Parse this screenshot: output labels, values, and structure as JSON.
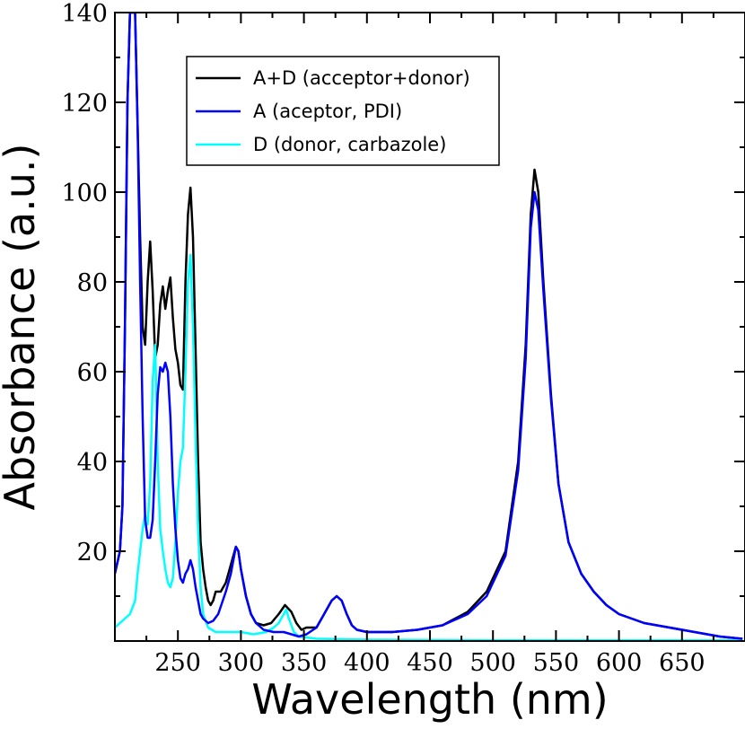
{
  "chart_data": {
    "type": "line",
    "title": "",
    "xlabel": "Wavelength (nm)",
    "ylabel": "Absorbance (a.u.)",
    "xlim": [
      200,
      700
    ],
    "ylim": [
      0,
      140
    ],
    "xticks": [
      250,
      300,
      350,
      400,
      450,
      500,
      550,
      600,
      650
    ],
    "yticks": [
      20,
      40,
      60,
      80,
      100,
      120,
      140
    ],
    "grid": false,
    "legend_position": "top-left",
    "series": [
      {
        "name": "A+D (acceptor+donor)",
        "color": "#000000",
        "points": [
          [
            200,
            15
          ],
          [
            204,
            20
          ],
          [
            206,
            30
          ],
          [
            208,
            70
          ],
          [
            210,
            120
          ],
          [
            212,
            140
          ],
          [
            216,
            140
          ],
          [
            218,
            115
          ],
          [
            220,
            90
          ],
          [
            222,
            70
          ],
          [
            224,
            66
          ],
          [
            226,
            80
          ],
          [
            228,
            89
          ],
          [
            230,
            78
          ],
          [
            232,
            63
          ],
          [
            234,
            66
          ],
          [
            236,
            75
          ],
          [
            238,
            79
          ],
          [
            240,
            74
          ],
          [
            242,
            78
          ],
          [
            244,
            81
          ],
          [
            246,
            72
          ],
          [
            248,
            65
          ],
          [
            250,
            62
          ],
          [
            252,
            57
          ],
          [
            254,
            56
          ],
          [
            256,
            80
          ],
          [
            258,
            95
          ],
          [
            260,
            101
          ],
          [
            262,
            90
          ],
          [
            264,
            65
          ],
          [
            266,
            40
          ],
          [
            268,
            22
          ],
          [
            270,
            16
          ],
          [
            272,
            12
          ],
          [
            274,
            9
          ],
          [
            276,
            8
          ],
          [
            278,
            9
          ],
          [
            280,
            11
          ],
          [
            284,
            11
          ],
          [
            288,
            13
          ],
          [
            292,
            17
          ],
          [
            296,
            21
          ],
          [
            298,
            20
          ],
          [
            300,
            16
          ],
          [
            304,
            10
          ],
          [
            308,
            6
          ],
          [
            312,
            4
          ],
          [
            318,
            3.5
          ],
          [
            324,
            4
          ],
          [
            330,
            6
          ],
          [
            335,
            8
          ],
          [
            340,
            6.5
          ],
          [
            344,
            4
          ],
          [
            348,
            2.5
          ],
          [
            352,
            3
          ],
          [
            360,
            3
          ],
          [
            366,
            6
          ],
          [
            372,
            9
          ],
          [
            376,
            10
          ],
          [
            380,
            9
          ],
          [
            384,
            6
          ],
          [
            388,
            3.5
          ],
          [
            392,
            2.5
          ],
          [
            400,
            2
          ],
          [
            420,
            2
          ],
          [
            440,
            2.5
          ],
          [
            460,
            3.5
          ],
          [
            480,
            6.5
          ],
          [
            495,
            11
          ],
          [
            510,
            20
          ],
          [
            520,
            40
          ],
          [
            526,
            66
          ],
          [
            530,
            95
          ],
          [
            533,
            105
          ],
          [
            536,
            100
          ],
          [
            540,
            80
          ],
          [
            546,
            55
          ],
          [
            552,
            35
          ],
          [
            560,
            22
          ],
          [
            570,
            15
          ],
          [
            580,
            11
          ],
          [
            590,
            8
          ],
          [
            600,
            6
          ],
          [
            620,
            4
          ],
          [
            640,
            3
          ],
          [
            660,
            2
          ],
          [
            680,
            1
          ],
          [
            698,
            0.5
          ]
        ]
      },
      {
        "name": "A (aceptor, PDI)",
        "color": "#0000ff",
        "points": [
          [
            200,
            15
          ],
          [
            204,
            20
          ],
          [
            206,
            30
          ],
          [
            208,
            70
          ],
          [
            210,
            120
          ],
          [
            212,
            140
          ],
          [
            216,
            140
          ],
          [
            218,
            115
          ],
          [
            220,
            80
          ],
          [
            222,
            50
          ],
          [
            224,
            27
          ],
          [
            226,
            23
          ],
          [
            228,
            23
          ],
          [
            230,
            27
          ],
          [
            232,
            40
          ],
          [
            234,
            55
          ],
          [
            236,
            61
          ],
          [
            238,
            60
          ],
          [
            240,
            62
          ],
          [
            242,
            60
          ],
          [
            244,
            50
          ],
          [
            246,
            35
          ],
          [
            248,
            25
          ],
          [
            250,
            18
          ],
          [
            252,
            14
          ],
          [
            254,
            13
          ],
          [
            256,
            15
          ],
          [
            258,
            16
          ],
          [
            260,
            18
          ],
          [
            262,
            16
          ],
          [
            264,
            12
          ],
          [
            266,
            9
          ],
          [
            268,
            6
          ],
          [
            270,
            5
          ],
          [
            274,
            4
          ],
          [
            278,
            4.5
          ],
          [
            282,
            6
          ],
          [
            288,
            11
          ],
          [
            292,
            15
          ],
          [
            296,
            21
          ],
          [
            298,
            20
          ],
          [
            300,
            16
          ],
          [
            304,
            10
          ],
          [
            308,
            6
          ],
          [
            312,
            4
          ],
          [
            318,
            2.5
          ],
          [
            326,
            2
          ],
          [
            334,
            2
          ],
          [
            340,
            1.5
          ],
          [
            346,
            1
          ],
          [
            352,
            1.5
          ],
          [
            360,
            3
          ],
          [
            366,
            6
          ],
          [
            372,
            9
          ],
          [
            376,
            10
          ],
          [
            380,
            9
          ],
          [
            384,
            6
          ],
          [
            388,
            3.5
          ],
          [
            392,
            2.5
          ],
          [
            400,
            2
          ],
          [
            420,
            2
          ],
          [
            440,
            2.5
          ],
          [
            460,
            3.5
          ],
          [
            480,
            6
          ],
          [
            495,
            10
          ],
          [
            510,
            19
          ],
          [
            520,
            38
          ],
          [
            526,
            63
          ],
          [
            530,
            92
          ],
          [
            533,
            100
          ],
          [
            536,
            96
          ],
          [
            540,
            78
          ],
          [
            546,
            54
          ],
          [
            552,
            35
          ],
          [
            560,
            22
          ],
          [
            570,
            15
          ],
          [
            580,
            11
          ],
          [
            590,
            8
          ],
          [
            600,
            6
          ],
          [
            620,
            4
          ],
          [
            640,
            3
          ],
          [
            660,
            2
          ],
          [
            680,
            1
          ],
          [
            698,
            0.5
          ]
        ]
      },
      {
        "name": "D (donor, carbazole)",
        "color": "#00ffff",
        "points": [
          [
            200,
            3
          ],
          [
            204,
            4
          ],
          [
            208,
            5
          ],
          [
            212,
            6
          ],
          [
            216,
            9
          ],
          [
            218,
            15
          ],
          [
            220,
            20
          ],
          [
            222,
            25
          ],
          [
            224,
            28
          ],
          [
            226,
            26
          ],
          [
            228,
            35
          ],
          [
            230,
            58
          ],
          [
            232,
            66
          ],
          [
            234,
            40
          ],
          [
            236,
            25
          ],
          [
            238,
            20
          ],
          [
            240,
            16
          ],
          [
            242,
            13
          ],
          [
            244,
            12
          ],
          [
            246,
            14
          ],
          [
            248,
            22
          ],
          [
            250,
            33
          ],
          [
            252,
            40
          ],
          [
            254,
            43
          ],
          [
            256,
            60
          ],
          [
            258,
            80
          ],
          [
            260,
            86
          ],
          [
            262,
            70
          ],
          [
            264,
            45
          ],
          [
            266,
            25
          ],
          [
            268,
            12
          ],
          [
            270,
            6
          ],
          [
            274,
            3
          ],
          [
            280,
            2
          ],
          [
            290,
            2
          ],
          [
            300,
            2
          ],
          [
            310,
            1.5
          ],
          [
            320,
            2
          ],
          [
            326,
            3
          ],
          [
            330,
            4
          ],
          [
            334,
            6
          ],
          [
            336,
            7
          ],
          [
            338,
            5
          ],
          [
            342,
            2
          ],
          [
            346,
            1
          ],
          [
            360,
            0.5
          ],
          [
            400,
            0.3
          ],
          [
            500,
            0.2
          ],
          [
            698,
            0.2
          ]
        ]
      }
    ]
  }
}
